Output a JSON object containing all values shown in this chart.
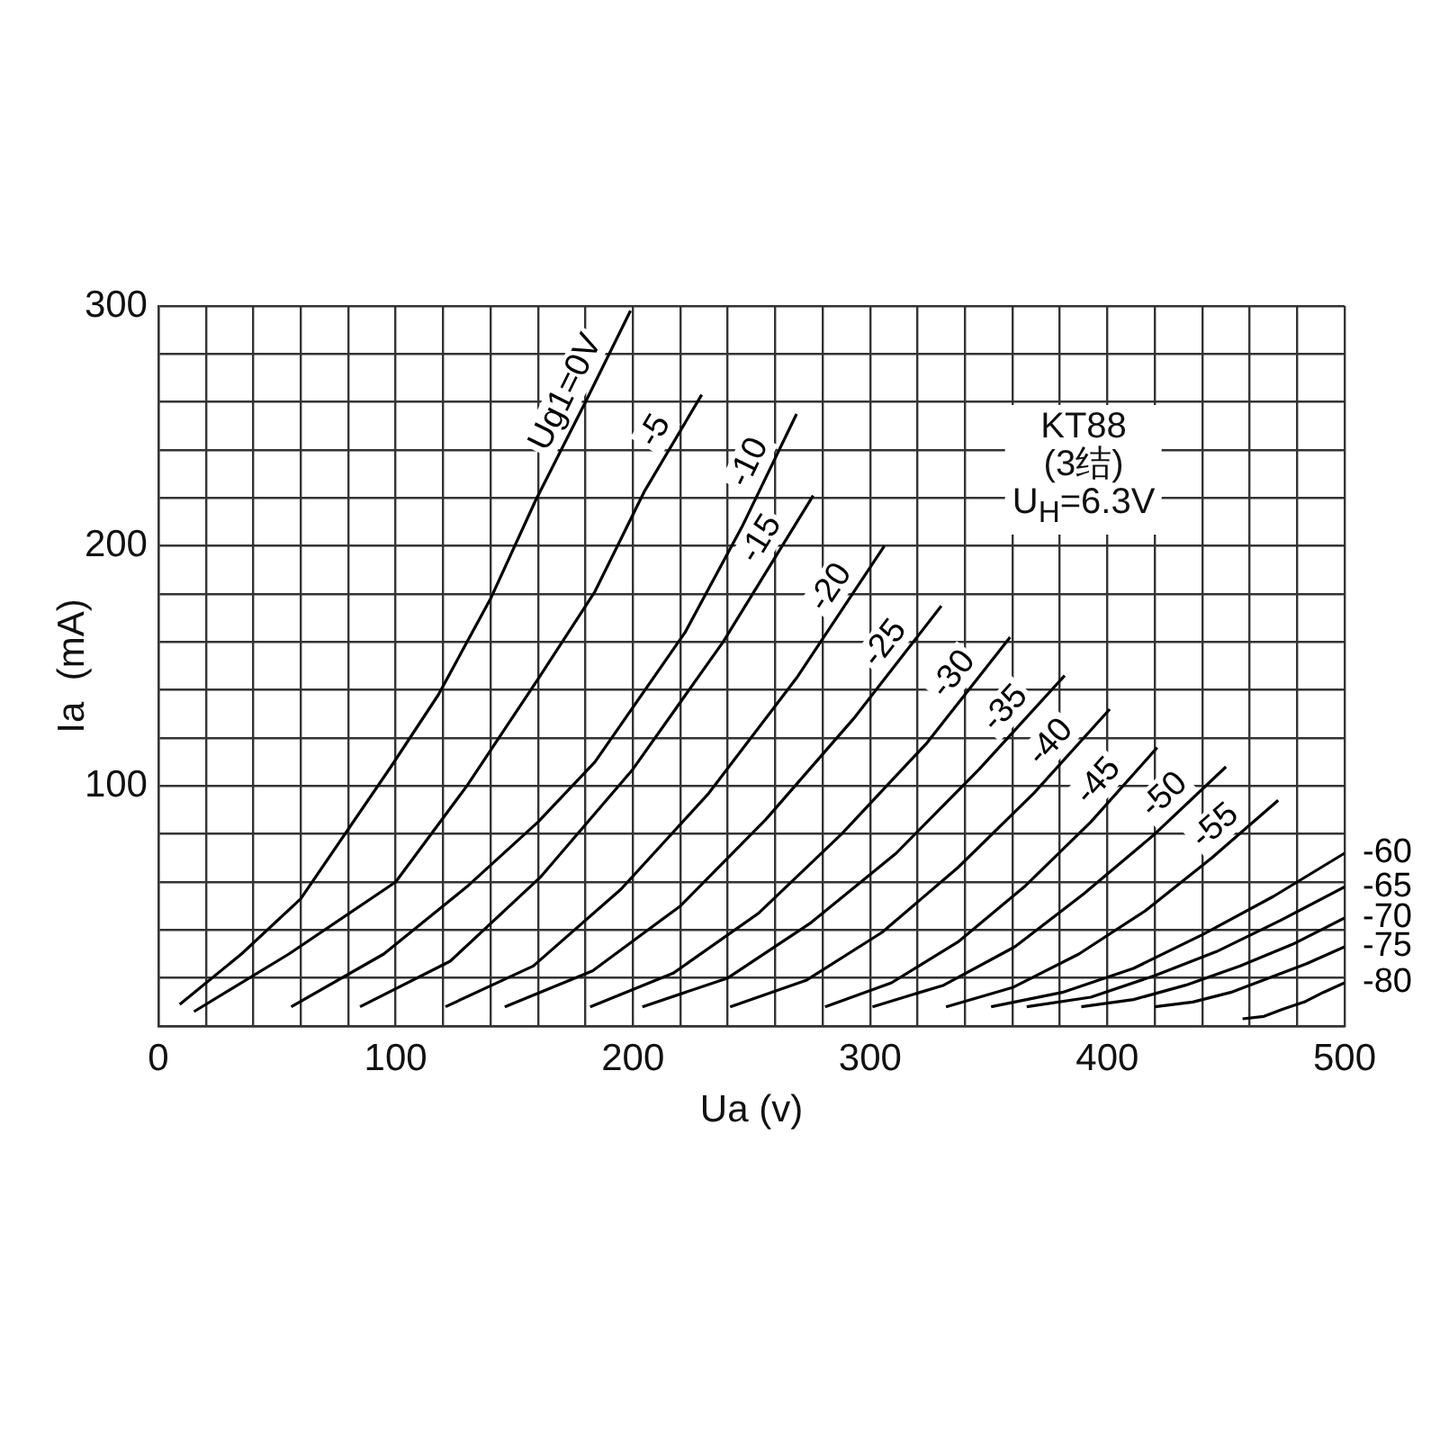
{
  "chart_data": {
    "type": "line",
    "xlabel": "Ua (v)",
    "ylabel": "Ia  (mA)",
    "annotations": [
      "KT88",
      "(3结)",
      "U$_{H}$=6.3V"
    ],
    "xlim": [
      0,
      500
    ],
    "ylim": [
      0,
      300
    ],
    "xticks": [
      0,
      {
        "value": 20,
        "label": null
      },
      {
        "value": 40,
        "label": null
      },
      {
        "value": 60,
        "label": null
      },
      {
        "value": 80,
        "label": null
      },
      100,
      {
        "value": 120,
        "label": null
      },
      {
        "value": 140,
        "label": null
      },
      {
        "value": 160,
        "label": null
      },
      {
        "value": 180,
        "label": null
      },
      200,
      {
        "value": 220,
        "label": null
      },
      {
        "value": 240,
        "label": null
      },
      {
        "value": 260,
        "label": null
      },
      {
        "value": 280,
        "label": null
      },
      300,
      {
        "value": 320,
        "label": null
      },
      {
        "value": 340,
        "label": null
      },
      {
        "value": 360,
        "label": null
      },
      {
        "value": 380,
        "label": null
      },
      400,
      {
        "value": 420,
        "label": null
      },
      {
        "value": 440,
        "label": null
      },
      {
        "value": 460,
        "label": null
      },
      {
        "value": 480,
        "label": null
      },
      500
    ],
    "yticks": [
      {
        "value": 0,
        "label": null
      },
      {
        "value": 20,
        "label": null
      },
      {
        "value": 40,
        "label": null
      },
      {
        "value": 60,
        "label": null
      },
      {
        "value": 80,
        "label": null
      },
      100,
      {
        "value": 120,
        "label": null
      },
      {
        "value": 140,
        "label": null
      },
      {
        "value": 160,
        "label": null
      },
      {
        "value": 180,
        "label": null
      },
      200,
      {
        "value": 220,
        "label": null
      },
      {
        "value": 240,
        "label": null
      },
      {
        "value": 260,
        "label": null
      },
      {
        "value": 280,
        "label": null
      },
      300
    ],
    "grid": true,
    "legend": false,
    "marker": "none",
    "line_style": "solid",
    "series": [
      {
        "name": "Ug1=0V",
        "color": "#000000",
        "x": [
          9,
          35,
          60,
          98,
          118,
          140,
          159,
          180,
          199
        ],
        "values": [
          9,
          30,
          53,
          108,
          138,
          178,
          219,
          260,
          298
        ]
      },
      {
        "name": "-5",
        "color": "#000000",
        "x": [
          15,
          55,
          100,
          130,
          161,
          184,
          205,
          229
        ],
        "values": [
          6,
          30,
          60,
          100,
          146,
          181,
          223,
          263
        ]
      },
      {
        "name": "-10",
        "color": "#000000",
        "x": [
          56,
          95,
          130,
          160,
          184,
          222,
          246,
          269
        ],
        "values": [
          8,
          30,
          58,
          85,
          110,
          164,
          208,
          255
        ]
      },
      {
        "name": "-15",
        "color": "#000000",
        "x": [
          85,
          123,
          161,
          200,
          238,
          276
        ],
        "values": [
          8,
          27,
          62,
          107,
          160,
          221
        ]
      },
      {
        "name": "-20",
        "color": "#000000",
        "x": [
          121,
          158,
          195,
          232,
          269,
          306
        ],
        "values": [
          8,
          25,
          57,
          97,
          145,
          200
        ]
      },
      {
        "name": "-25",
        "color": "#000000",
        "x": [
          146,
          183,
          220,
          256,
          293,
          330
        ],
        "values": [
          8,
          23,
          50,
          86,
          128,
          175
        ]
      },
      {
        "name": "-30",
        "color": "#000000",
        "x": [
          182,
          217,
          253,
          288,
          324,
          359
        ],
        "values": [
          8,
          22,
          47,
          80,
          118,
          162
        ]
      },
      {
        "name": "-35",
        "color": "#000000",
        "x": [
          204,
          240,
          275,
          311,
          346,
          382
        ],
        "values": [
          8,
          20,
          43,
          72,
          107,
          146
        ]
      },
      {
        "name": "-40",
        "color": "#000000",
        "x": [
          241,
          273,
          305,
          337,
          369,
          401
        ],
        "values": [
          8,
          19,
          39,
          66,
          97,
          132
        ]
      },
      {
        "name": "-45",
        "color": "#000000",
        "x": [
          281,
          309,
          337,
          365,
          393,
          421
        ],
        "values": [
          8,
          18,
          35,
          58,
          85,
          116
        ]
      },
      {
        "name": "-50",
        "color": "#000000",
        "x": [
          301,
          331,
          361,
          390,
          420,
          450
        ],
        "values": [
          8,
          17,
          33,
          55,
          80,
          108
        ]
      },
      {
        "name": "-55",
        "color": "#000000",
        "x": [
          332,
          360,
          388,
          416,
          444,
          472
        ],
        "values": [
          8,
          16,
          30,
          48,
          70,
          94
        ]
      },
      {
        "name": "-60",
        "color": "#000000",
        "x": [
          351,
          381,
          411,
          440,
          470,
          500
        ],
        "values": [
          8,
          14,
          24,
          38,
          54,
          72
        ]
      },
      {
        "name": "-65",
        "color": "#000000",
        "x": [
          366,
          393,
          420,
          446,
          473,
          500
        ],
        "values": [
          8,
          12,
          21,
          31,
          44,
          58
        ]
      },
      {
        "name": "-70",
        "color": "#000000",
        "x": [
          389,
          411,
          433,
          456,
          478,
          500
        ],
        "values": [
          8,
          11,
          17,
          25,
          34,
          45
        ]
      },
      {
        "name": "-75",
        "color": "#000000",
        "x": [
          420,
          436,
          452,
          468,
          484,
          500
        ],
        "values": [
          8,
          10,
          14,
          20,
          26,
          33
        ]
      },
      {
        "name": "-80",
        "color": "#000000",
        "x": [
          457,
          466,
          474,
          483,
          491,
          500
        ],
        "values": [
          3,
          4,
          7,
          10,
          14,
          18
        ]
      }
    ]
  }
}
